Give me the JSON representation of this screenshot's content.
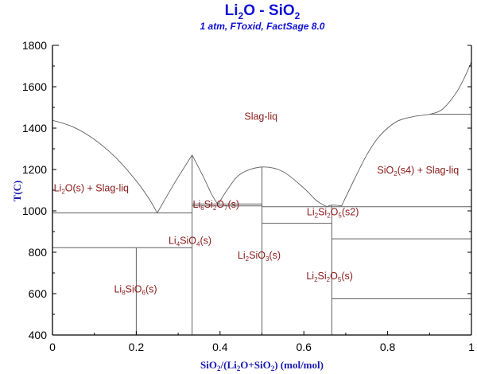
{
  "header": {
    "title_parts": [
      "Li",
      "2",
      "O - SiO",
      "2"
    ],
    "title": "Li2O - SiO2",
    "subtitle": "1 atm, FToxid, FactSage 8.0"
  },
  "colors": {
    "title": "#1010d8",
    "axis_title": "#1a1ab0",
    "region_label": "#8b1a1a",
    "lines": "#606060"
  },
  "chart_data": {
    "type": "line",
    "title": "Li2O - SiO2",
    "subtitle": "1 atm, FToxid, FactSage 8.0",
    "xlabel": "SiO2/(Li2O+SiO2) (mol/mol)",
    "ylabel": "T(C)",
    "xlim": [
      0,
      1
    ],
    "ylim": [
      400,
      1800
    ],
    "x_ticks": [
      0,
      0.2,
      0.4,
      0.6,
      0.8,
      1
    ],
    "x_tick_labels": [
      "0",
      "0.2",
      "0.4",
      "0.6",
      "0.8",
      "1"
    ],
    "x_minor_ticks": [
      0.1,
      0.3,
      0.5,
      0.7,
      0.9
    ],
    "y_ticks": [
      400,
      600,
      800,
      1000,
      1200,
      1400,
      1600,
      1800
    ],
    "y_tick_labels": [
      "400",
      "600",
      "800",
      "1000",
      "1200",
      "1400",
      "1600",
      "1800"
    ],
    "y_minor_ticks": [
      500,
      700,
      900,
      1100,
      1300,
      1500,
      1700
    ],
    "grid": false,
    "liquidus_curves": [
      {
        "name": "Li2O liquidus",
        "points": [
          [
            0,
            1438
          ],
          [
            0.05,
            1405
          ],
          [
            0.1,
            1345
          ],
          [
            0.15,
            1260
          ],
          [
            0.2,
            1145
          ],
          [
            0.23,
            1060
          ],
          [
            0.25,
            990
          ]
        ]
      },
      {
        "name": "Li4SiO4 liquidus left",
        "points": [
          [
            0.25,
            990
          ],
          [
            0.29,
            1130
          ],
          [
            0.3333,
            1270
          ]
        ]
      },
      {
        "name": "Li4SiO4 liquidus right",
        "points": [
          [
            0.3333,
            1270
          ],
          [
            0.36,
            1165
          ],
          [
            0.38,
            1080
          ],
          [
            0.395,
            1030
          ]
        ]
      },
      {
        "name": "Li2SiO3 liquidus",
        "points": [
          [
            0.395,
            1030
          ],
          [
            0.42,
            1110
          ],
          [
            0.45,
            1180
          ],
          [
            0.5,
            1212
          ],
          [
            0.55,
            1190
          ],
          [
            0.6,
            1110
          ],
          [
            0.63,
            1050
          ],
          [
            0.655,
            1020
          ]
        ]
      },
      {
        "name": "Li2Si2O5 liquidus",
        "points": [
          [
            0.655,
            1020
          ],
          [
            0.667,
            1028
          ],
          [
            0.69,
            1024
          ]
        ]
      },
      {
        "name": "SiO2 liquidus",
        "points": [
          [
            0.69,
            1024
          ],
          [
            0.72,
            1150
          ],
          [
            0.75,
            1270
          ],
          [
            0.78,
            1360
          ],
          [
            0.82,
            1430
          ],
          [
            0.86,
            1455
          ],
          [
            0.9,
            1467
          ],
          [
            0.93,
            1490
          ],
          [
            0.96,
            1560
          ],
          [
            0.98,
            1630
          ],
          [
            1.0,
            1720
          ]
        ]
      }
    ],
    "horizontal_lines": [
      {
        "y": 990,
        "x": [
          0,
          0.3333
        ]
      },
      {
        "y": 822,
        "x": [
          0,
          0.3333
        ]
      },
      {
        "y": 1033,
        "x": [
          0.3333,
          0.5
        ]
      },
      {
        "y": 1024,
        "x": [
          0.3333,
          0.5
        ]
      },
      {
        "y": 1020,
        "x": [
          0.5,
          1.0
        ]
      },
      {
        "y": 940,
        "x": [
          0.5,
          0.6667
        ]
      },
      {
        "y": 865,
        "x": [
          0.6667,
          1.0
        ]
      },
      {
        "y": 575,
        "x": [
          0.6667,
          1.0
        ]
      },
      {
        "y": 1467,
        "x": [
          0.9,
          1.0
        ]
      }
    ],
    "vertical_lines": [
      {
        "x": 0.2,
        "y": [
          400,
          822
        ]
      },
      {
        "x": 0.3333,
        "y": [
          400,
          1270
        ]
      },
      {
        "x": 0.5,
        "y": [
          400,
          1212
        ]
      },
      {
        "x": 0.6667,
        "y": [
          400,
          1028
        ]
      }
    ],
    "annotations": [
      {
        "id": "slag-liq",
        "parts": [
          [
            "Slag-liq",
            false
          ]
        ],
        "x": 0.458,
        "y": 1440
      },
      {
        "id": "li2o-slag",
        "parts": [
          [
            "Li",
            false
          ],
          [
            "2",
            true
          ],
          [
            "O(s) + Slag-liq",
            false
          ]
        ],
        "x": 0.003,
        "y": 1095
      },
      {
        "id": "li6si2o7",
        "parts": [
          [
            "Li",
            false
          ],
          [
            "6",
            true
          ],
          [
            "Si",
            false
          ],
          [
            "2",
            true
          ],
          [
            "O",
            false
          ],
          [
            "7",
            true
          ],
          [
            "(s)",
            false
          ]
        ],
        "x": 0.335,
        "y": 1015
      },
      {
        "id": "li2si2o5-s2",
        "parts": [
          [
            "Li",
            false
          ],
          [
            "2",
            true
          ],
          [
            "Si",
            false
          ],
          [
            "2",
            true
          ],
          [
            "O",
            false
          ],
          [
            "5",
            true
          ],
          [
            "(s2)",
            false
          ]
        ],
        "x": 0.607,
        "y": 978
      },
      {
        "id": "sio2-s4-slag",
        "parts": [
          [
            "SiO",
            false
          ],
          [
            "2",
            true
          ],
          [
            "(s4) + Slag-liq",
            false
          ]
        ],
        "x": 0.775,
        "y": 1180
      },
      {
        "id": "li4sio4",
        "parts": [
          [
            "Li",
            false
          ],
          [
            "4",
            true
          ],
          [
            "SiO",
            false
          ],
          [
            "4",
            true
          ],
          [
            "(s)",
            false
          ]
        ],
        "x": 0.277,
        "y": 840
      },
      {
        "id": "li2sio3",
        "parts": [
          [
            "Li",
            false
          ],
          [
            "2",
            true
          ],
          [
            "SiO",
            false
          ],
          [
            "3",
            true
          ],
          [
            "(s)",
            false
          ]
        ],
        "x": 0.442,
        "y": 770
      },
      {
        "id": "li2si2o5-s",
        "parts": [
          [
            "Li",
            false
          ],
          [
            "2",
            true
          ],
          [
            "Si",
            false
          ],
          [
            "2",
            true
          ],
          [
            "O",
            false
          ],
          [
            "5",
            true
          ],
          [
            "(s)",
            false
          ]
        ],
        "x": 0.606,
        "y": 670
      },
      {
        "id": "li8sio6",
        "parts": [
          [
            "Li",
            false
          ],
          [
            "8",
            true
          ],
          [
            "SiO",
            false
          ],
          [
            "6",
            true
          ],
          [
            "(s)",
            false
          ]
        ],
        "x": 0.147,
        "y": 605
      }
    ]
  }
}
